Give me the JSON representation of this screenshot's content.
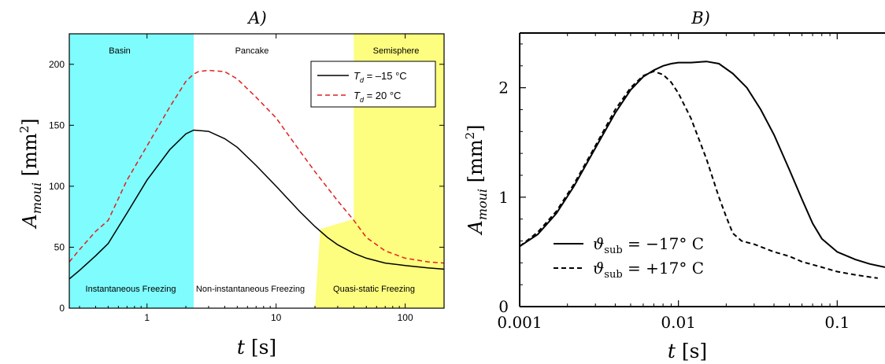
{
  "chart_data": [
    {
      "type": "line",
      "title": "A)",
      "xlabel": "t [s]",
      "ylabel": "A_moui [mm²]",
      "ylabel_main": "A",
      "ylabel_sub": "moui",
      "ylabel_unit_open": "[mm",
      "ylabel_unit_exp": "2",
      "ylabel_unit_close": "]",
      "xlabel_main": "t",
      "xlabel_unit": "[s]",
      "x_scale": "log",
      "xlim": [
        0.25,
        200
      ],
      "ylim": [
        0,
        225
      ],
      "x_ticks": [
        1,
        10,
        100
      ],
      "x_tick_labels": [
        "1",
        "10",
        "100"
      ],
      "y_ticks": [
        0,
        50,
        100,
        150,
        200
      ],
      "y_tick_labels": [
        "0",
        "50",
        "100",
        "150",
        "200"
      ],
      "background_color": "#ececec",
      "regions": [
        {
          "name": "Basin",
          "x_from": 0.25,
          "x_to": 2.3,
          "color": "#7ffcfd",
          "top_label": "Basin",
          "bottom_label": "Instantaneous Freezing"
        },
        {
          "name": "Pancake",
          "x_from": 2.3,
          "x_to": 40,
          "color": "#ffffff",
          "top_label": "Pancake",
          "bottom_label": "Non-instantaneous Freezing"
        },
        {
          "name": "Semisphere",
          "x_from": 40,
          "x_to": 200,
          "color": "#fdfd7f",
          "top_label": "Semisphere",
          "bottom_label": "Quasi-static Freezing"
        }
      ],
      "quasi_static_patch": {
        "x": [
          20,
          22,
          40,
          40,
          20
        ],
        "y": [
          0,
          65,
          73,
          0,
          0
        ],
        "color": "#fdfd7f"
      },
      "legend": {
        "position": "top-right",
        "entries": [
          {
            "prefix": "T",
            "sub": "d",
            "text": " = –15 °C",
            "color": "#000000",
            "dash": "solid"
          },
          {
            "prefix": "T",
            "sub": "d",
            "text": " = 20 °C",
            "color": "#e02020",
            "dash": "dashed"
          }
        ]
      },
      "series": [
        {
          "name": "T_d = -15 °C",
          "color": "#000000",
          "dash": "solid",
          "x": [
            0.25,
            0.3,
            0.4,
            0.5,
            0.7,
            1.0,
            1.5,
            2.0,
            2.3,
            3.0,
            4.0,
            5.0,
            7.0,
            10,
            15,
            20,
            25,
            30,
            40,
            50,
            70,
            100,
            150,
            200
          ],
          "y": [
            24,
            31,
            43,
            53,
            78,
            105,
            130,
            143,
            146,
            145,
            139,
            132,
            117,
            100,
            80,
            67,
            58,
            52,
            45,
            41,
            37,
            35,
            33,
            32
          ]
        },
        {
          "name": "T_d = 20 °C",
          "color": "#e02020",
          "dash": "dashed",
          "x": [
            0.25,
            0.3,
            0.4,
            0.5,
            0.7,
            1.0,
            1.5,
            2.0,
            2.3,
            2.5,
            3.0,
            4.0,
            5.0,
            7.0,
            10,
            15,
            20,
            30,
            40,
            50,
            70,
            100,
            150,
            200
          ],
          "y": [
            38,
            48,
            63,
            72,
            105,
            133,
            165,
            186,
            192,
            194,
            195,
            194,
            188,
            173,
            156,
            130,
            112,
            88,
            72,
            58,
            47,
            41,
            38,
            37
          ]
        }
      ]
    },
    {
      "type": "line",
      "title": "B)",
      "xlabel": "t [s]",
      "ylabel": "A_moui [mm²]",
      "ylabel_main": "A",
      "ylabel_sub": "moui",
      "ylabel_unit_open": "[mm",
      "ylabel_unit_exp": "2",
      "ylabel_unit_close": "]",
      "xlabel_main": "t",
      "xlabel_unit": "[s]",
      "x_scale": "log",
      "xlim": [
        0.001,
        0.2
      ],
      "ylim": [
        0,
        2.5
      ],
      "x_ticks": [
        0.001,
        0.01,
        0.1
      ],
      "x_tick_labels": [
        "0.001",
        "0.01",
        "0.1"
      ],
      "y_ticks": [
        0,
        1,
        2
      ],
      "y_tick_labels": [
        "0",
        "1",
        "2"
      ],
      "legend": {
        "position": "bottom-left",
        "entries": [
          {
            "prefix": "ϑ",
            "sub": "sub",
            "text": " = −17° C",
            "dash": "solid"
          },
          {
            "prefix": "ϑ",
            "sub": "sub",
            "text": " = +17° C",
            "dash": "dashed"
          }
        ]
      },
      "series": [
        {
          "name": "ϑ_sub = −17° C",
          "color": "#000000",
          "dash": "solid",
          "x": [
            0.001,
            0.0013,
            0.0017,
            0.0022,
            0.003,
            0.004,
            0.005,
            0.006,
            0.007,
            0.008,
            0.009,
            0.01,
            0.012,
            0.015,
            0.018,
            0.022,
            0.027,
            0.033,
            0.04,
            0.05,
            0.06,
            0.07,
            0.08,
            0.1,
            0.13,
            0.16,
            0.2
          ],
          "y": [
            0.55,
            0.66,
            0.85,
            1.1,
            1.45,
            1.77,
            1.98,
            2.1,
            2.16,
            2.2,
            2.22,
            2.23,
            2.23,
            2.24,
            2.22,
            2.13,
            2.0,
            1.8,
            1.57,
            1.25,
            0.98,
            0.76,
            0.62,
            0.5,
            0.43,
            0.39,
            0.36
          ]
        },
        {
          "name": "ϑ_sub = +17° C",
          "color": "#000000",
          "dash": "dashed",
          "x": [
            0.001,
            0.0013,
            0.0017,
            0.0022,
            0.003,
            0.004,
            0.005,
            0.006,
            0.007,
            0.008,
            0.009,
            0.01,
            0.012,
            0.015,
            0.018,
            0.02,
            0.022,
            0.025,
            0.03,
            0.04,
            0.05,
            0.06,
            0.08,
            0.1,
            0.13,
            0.16,
            0.18
          ],
          "y": [
            0.55,
            0.68,
            0.87,
            1.12,
            1.47,
            1.8,
            2.0,
            2.11,
            2.15,
            2.12,
            2.05,
            1.95,
            1.72,
            1.35,
            1.0,
            0.82,
            0.67,
            0.6,
            0.57,
            0.5,
            0.46,
            0.41,
            0.36,
            0.32,
            0.29,
            0.27,
            0.26
          ]
        }
      ]
    }
  ]
}
